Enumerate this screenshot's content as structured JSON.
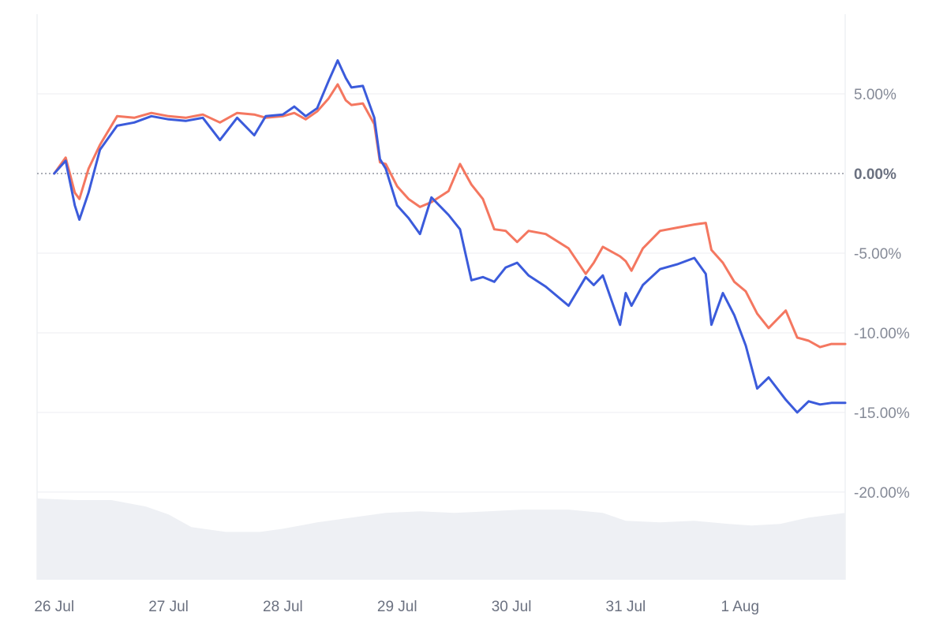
{
  "chart_data": {
    "type": "line",
    "title": "",
    "xlabel": "",
    "ylabel": "",
    "x_tick_labels": [
      "26 Jul",
      "27 Jul",
      "28 Jul",
      "29 Jul",
      "30 Jul",
      "31 Jul",
      "1 Aug"
    ],
    "y_ticks": [
      {
        "value": 5,
        "label": "5.00%"
      },
      {
        "value": 0,
        "label": "0.00%"
      },
      {
        "value": -5,
        "label": "-5.00%"
      },
      {
        "value": -10,
        "label": "-10.00%"
      },
      {
        "value": -15,
        "label": "-15.00%"
      },
      {
        "value": -20,
        "label": "-20.00%"
      }
    ],
    "ylim": [
      -25.5,
      10
    ],
    "xlim_days": [
      -0.15,
      6.92
    ],
    "grid": true,
    "zero_line": "dotted",
    "series": [
      {
        "color": "#3b5bdb",
        "x_days": [
          0,
          0.1,
          0.18,
          0.22,
          0.3,
          0.4,
          0.55,
          0.7,
          0.85,
          1,
          1.15,
          1.3,
          1.45,
          1.6,
          1.75,
          1.85,
          2,
          2.1,
          2.2,
          2.3,
          2.4,
          2.48,
          2.55,
          2.6,
          2.7,
          2.8,
          2.85,
          2.9,
          3,
          3.1,
          3.2,
          3.3,
          3.45,
          3.55,
          3.65,
          3.75,
          3.85,
          3.95,
          4.05,
          4.15,
          4.3,
          4.5,
          4.65,
          4.72,
          4.8,
          4.95,
          5,
          5.05,
          5.15,
          5.3,
          5.45,
          5.6,
          5.7,
          5.75,
          5.85,
          5.95,
          6.05,
          6.15,
          6.25,
          6.4,
          6.5,
          6.6,
          6.7,
          6.8,
          6.92
        ],
        "values": [
          0,
          0.8,
          -2,
          -2.9,
          -1.2,
          1.5,
          3,
          3.2,
          3.6,
          3.4,
          3.3,
          3.5,
          2.1,
          3.5,
          2.4,
          3.6,
          3.7,
          4.2,
          3.6,
          4.1,
          5.8,
          7.1,
          6,
          5.4,
          5.5,
          3.5,
          0.9,
          0.3,
          -2,
          -2.8,
          -3.8,
          -1.5,
          -2.6,
          -3.5,
          -6.7,
          -6.5,
          -6.8,
          -5.9,
          -5.6,
          -6.4,
          -7.1,
          -8.3,
          -6.5,
          -7,
          -6.4,
          -9.5,
          -7.5,
          -8.3,
          -7,
          -6,
          -5.7,
          -5.3,
          -6.3,
          -9.5,
          -7.5,
          -8.9,
          -10.8,
          -13.5,
          -12.8,
          -14.2,
          -15.0,
          -14.3,
          -14.5,
          -14.4,
          -14.4
        ]
      },
      {
        "color": "#f47760",
        "x_days": [
          0,
          0.1,
          0.18,
          0.22,
          0.3,
          0.4,
          0.55,
          0.7,
          0.85,
          1,
          1.15,
          1.3,
          1.45,
          1.6,
          1.75,
          1.85,
          2,
          2.1,
          2.2,
          2.3,
          2.4,
          2.48,
          2.55,
          2.6,
          2.7,
          2.8,
          2.85,
          2.9,
          3,
          3.1,
          3.2,
          3.3,
          3.45,
          3.55,
          3.65,
          3.75,
          3.85,
          3.95,
          4.05,
          4.15,
          4.3,
          4.5,
          4.65,
          4.72,
          4.8,
          4.95,
          5,
          5.05,
          5.15,
          5.3,
          5.45,
          5.6,
          5.7,
          5.75,
          5.85,
          5.95,
          6.05,
          6.15,
          6.25,
          6.4,
          6.5,
          6.6,
          6.7,
          6.8,
          6.92
        ],
        "values": [
          0,
          1,
          -1.2,
          -1.6,
          0.3,
          1.8,
          3.6,
          3.5,
          3.8,
          3.6,
          3.5,
          3.7,
          3.2,
          3.8,
          3.7,
          3.5,
          3.6,
          3.8,
          3.4,
          3.9,
          4.7,
          5.6,
          4.6,
          4.3,
          4.4,
          3.1,
          0.7,
          0.6,
          -0.8,
          -1.6,
          -2.1,
          -1.8,
          -1.1,
          0.6,
          -0.7,
          -1.6,
          -3.5,
          -3.6,
          -4.3,
          -3.6,
          -3.8,
          -4.7,
          -6.3,
          -5.6,
          -4.6,
          -5.2,
          -5.5,
          -6.1,
          -4.7,
          -3.6,
          -3.4,
          -3.2,
          -3.1,
          -4.8,
          -5.6,
          -6.8,
          -7.4,
          -8.8,
          -9.7,
          -8.6,
          -10.3,
          -10.5,
          -10.9,
          -10.7,
          -10.7
        ]
      }
    ],
    "volume_area": {
      "color": "#eef0f4",
      "x_days": [
        -0.15,
        0.2,
        0.5,
        0.8,
        1.0,
        1.2,
        1.5,
        1.8,
        2.0,
        2.3,
        2.6,
        2.9,
        3.2,
        3.5,
        3.8,
        4.1,
        4.5,
        4.8,
        5.0,
        5.3,
        5.6,
        5.9,
        6.1,
        6.35,
        6.6,
        6.92
      ],
      "values": [
        -20.4,
        -20.5,
        -20.5,
        -20.9,
        -21.4,
        -22.2,
        -22.5,
        -22.5,
        -22.3,
        -21.9,
        -21.6,
        -21.3,
        -21.2,
        -21.3,
        -21.2,
        -21.1,
        -21.1,
        -21.3,
        -21.8,
        -21.9,
        -21.8,
        -22.0,
        -22.1,
        -22.0,
        -21.6,
        -21.3
      ]
    }
  }
}
